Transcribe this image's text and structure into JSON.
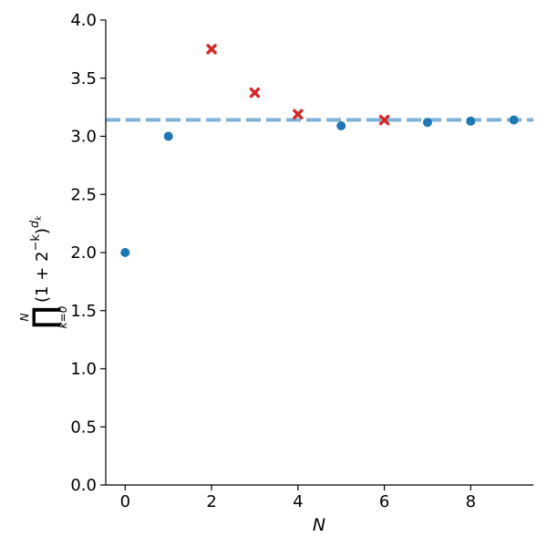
{
  "chart_data": {
    "type": "scatter",
    "title": "",
    "xlabel": "N",
    "ylabel": "∏_{k=0}^{N} (1+2^{-k})^{d_k}",
    "ylabel_parts": {
      "product_symbol": "∏",
      "upper_limit": "N",
      "lower_limit": "k=0",
      "base": "(1 + 2",
      "exponent_inner": "−k",
      "close": ")",
      "exponent_outer": "d",
      "exponent_outer_sub": "k"
    },
    "xlim": [
      -0.45,
      9.45
    ],
    "ylim": [
      0.0,
      4.0
    ],
    "xticks": [
      0,
      2,
      4,
      6,
      8
    ],
    "xtick_labels": [
      "0",
      "2",
      "4",
      "6",
      "8"
    ],
    "yticks": [
      0.0,
      0.5,
      1.0,
      1.5,
      2.0,
      2.5,
      3.0,
      3.5,
      4.0
    ],
    "ytick_labels": [
      "0.0",
      "0.5",
      "1.0",
      "1.5",
      "2.0",
      "2.5",
      "3.0",
      "3.5",
      "4.0"
    ],
    "grid": false,
    "reference_line": {
      "y": 3.14159,
      "style": "dashed",
      "color": "#7fb2d9"
    },
    "series": [
      {
        "marker": "circle",
        "color": "#1f77b4",
        "points": [
          {
            "x": 0,
            "y": 2.0
          },
          {
            "x": 1,
            "y": 3.0
          },
          {
            "x": 5,
            "y": 3.09
          },
          {
            "x": 7,
            "y": 3.12
          },
          {
            "x": 8,
            "y": 3.13
          },
          {
            "x": 9,
            "y": 3.14
          }
        ]
      },
      {
        "marker": "x",
        "color": "#d62728",
        "points": [
          {
            "x": 2,
            "y": 3.75
          },
          {
            "x": 3,
            "y": 3.375
          },
          {
            "x": 4,
            "y": 3.19
          },
          {
            "x": 6,
            "y": 3.14
          }
        ]
      }
    ]
  }
}
